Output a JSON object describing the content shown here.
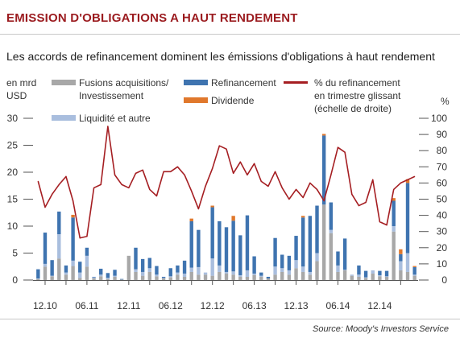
{
  "header": {
    "title": "EMISSION D'OBLIGATIONS A HAUT RENDEMENT",
    "subtitle": "Les accords de refinancement dominent les émissions d'obligations à haut rendement"
  },
  "units": {
    "left_line1": "en mrd",
    "left_line2": "USD",
    "right": "%"
  },
  "legend": {
    "ma_line1": "Fusions acquisitions/",
    "ma_line2": "Investissement",
    "liq": "Liquidité et autre",
    "refi": "Refinancement",
    "div": "Dividende",
    "line_line1": "% du refinancement",
    "line_line2": "en trimestre glissant",
    "line_line3": "(échelle de droite)"
  },
  "colors": {
    "ma": "#a8a8a8",
    "liq": "#a9bede",
    "refi": "#3f74b0",
    "div": "#e0782c",
    "line": "#a51e22",
    "title": "#9b1b1f"
  },
  "footer": {
    "source": "Source: Moody's Investors Service"
  },
  "chart_data": {
    "type": "bar",
    "title": "",
    "xlabel": "",
    "ylabel": "en mrd USD",
    "ylim": [
      0,
      30
    ],
    "yticks": [
      0,
      5,
      10,
      15,
      20,
      25,
      30
    ],
    "y2label": "%",
    "y2lim": [
      0,
      100
    ],
    "y2ticks": [
      0,
      10,
      20,
      30,
      40,
      50,
      60,
      70,
      80,
      90,
      100
    ],
    "stacked": true,
    "grid": false,
    "legend_position": "top",
    "x_tick_labels": [
      "12.10",
      "06.11",
      "12.11",
      "06.12",
      "12.12",
      "06.13",
      "12.13",
      "06.14",
      "12.14"
    ],
    "x_tick_positions": [
      1,
      7,
      13,
      19,
      25,
      31,
      37,
      43,
      49
    ],
    "x_count": 55,
    "series": [
      {
        "name": "Fusions acquisitions/ Investissement",
        "values": [
          0.2,
          2.5,
          0.7,
          4.0,
          1.0,
          2.6,
          0.4,
          2.5,
          0.3,
          0.7,
          0.2,
          0.6,
          0.1,
          4.5,
          1.5,
          0.8,
          1.5,
          0.7,
          0.3,
          0.5,
          1.0,
          0.6,
          1.5,
          1.0,
          1.0,
          0.8,
          1.5,
          1.2,
          1.0,
          0.6,
          0.6,
          0.9,
          0.6,
          0.3,
          1.0,
          1.5,
          1.0,
          2.2,
          1.5,
          1.0,
          3.5,
          14.0,
          8.7,
          1.5,
          1.8,
          0.8,
          0.6,
          0.4,
          1.2,
          0.7,
          0.6,
          9.0,
          1.8,
          1.5,
          0.8
        ]
      },
      {
        "name": "Liquidité et autre",
        "values": [
          0.1,
          0.5,
          0.1,
          4.5,
          0.4,
          1.0,
          1.0,
          2.0,
          0.2,
          0.3,
          0.2,
          0.2,
          0.0,
          0.0,
          0.5,
          0.7,
          0.7,
          0.3,
          0.1,
          0.2,
          0.4,
          0.6,
          0.8,
          1.4,
          0.4,
          3.2,
          1.2,
          0.3,
          0.6,
          0.3,
          1.2,
          0.3,
          0.2,
          0.0,
          1.5,
          0.7,
          0.8,
          1.5,
          1.0,
          0.5,
          1.5,
          0.0,
          0.6,
          1.2,
          0.1,
          0.2,
          0.4,
          0.1,
          0.6,
          0.2,
          0.1,
          1.0,
          1.7,
          3.5,
          0.2
        ]
      },
      {
        "name": "Refinancement",
        "values": [
          1.7,
          5.8,
          2.9,
          4.2,
          1.3,
          8.0,
          2.0,
          1.5,
          0.1,
          1.1,
          0.9,
          1.1,
          0.1,
          0.0,
          4.0,
          2.4,
          1.9,
          1.6,
          0.2,
          1.5,
          1.3,
          2.4,
          8.6,
          6.9,
          0.0,
          9.5,
          8.2,
          8.3,
          9.4,
          7.4,
          10.2,
          3.2,
          0.6,
          0.3,
          5.3,
          2.5,
          2.7,
          4.5,
          9.1,
          10.4,
          8.8,
          12.8,
          5.1,
          2.6,
          5.8,
          0.0,
          1.7,
          1.2,
          0.0,
          0.8,
          1.0,
          4.7,
          1.3,
          13.0,
          1.4
        ]
      },
      {
        "name": "Dividende",
        "values": [
          0.0,
          0.0,
          0.0,
          0.0,
          0.0,
          0.5,
          0.0,
          0.0,
          0.0,
          0.0,
          0.0,
          0.0,
          0.0,
          0.0,
          0.0,
          0.0,
          0.0,
          0.0,
          0.0,
          0.0,
          0.0,
          0.0,
          0.5,
          0.0,
          0.0,
          0.3,
          0.0,
          0.0,
          0.9,
          0.0,
          0.0,
          0.0,
          0.0,
          0.0,
          0.0,
          0.0,
          0.0,
          0.0,
          0.3,
          0.0,
          0.0,
          0.3,
          0.0,
          0.0,
          0.0,
          0.0,
          0.0,
          0.0,
          0.0,
          0.0,
          0.0,
          0.5,
          0.9,
          0.7,
          0.2
        ]
      }
    ],
    "line_series": {
      "name": "% du refinancement en trimestre glissant (échelle de droite)",
      "axis": "right",
      "values": [
        61,
        45,
        53,
        59,
        64,
        49,
        26,
        27,
        57,
        59,
        95,
        65,
        59,
        57,
        66,
        68,
        56,
        52,
        67,
        67,
        70,
        65,
        55,
        44,
        58,
        69,
        83,
        81,
        66,
        73,
        65,
        72,
        61,
        58,
        67,
        57,
        50,
        56,
        51,
        60,
        56,
        49,
        65,
        82,
        79,
        53,
        46,
        48,
        62,
        36,
        34,
        56,
        60,
        62,
        64
      ]
    }
  }
}
